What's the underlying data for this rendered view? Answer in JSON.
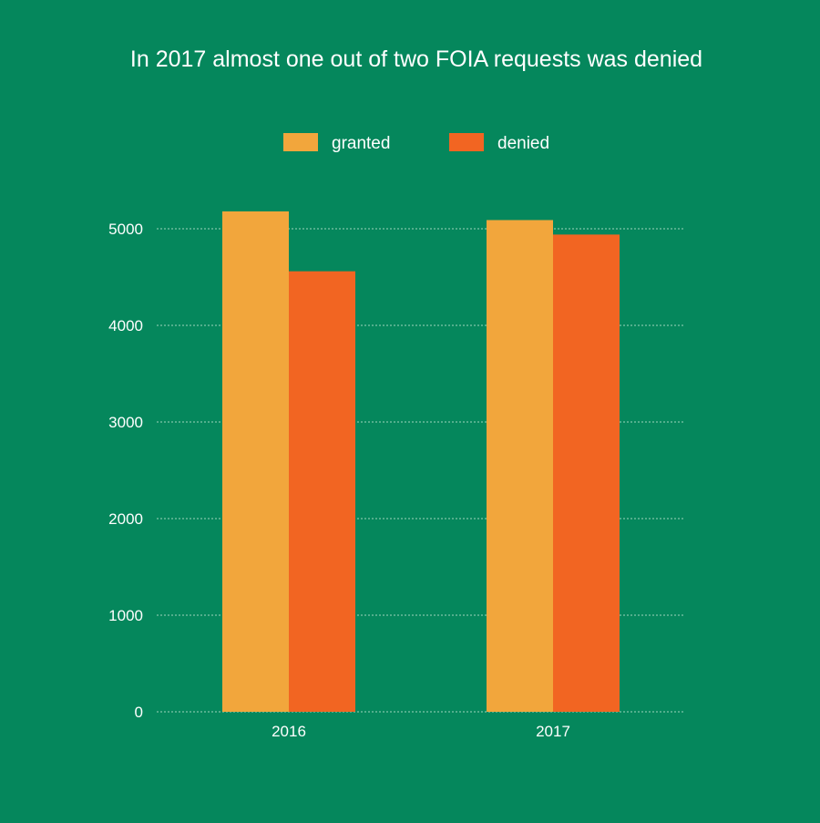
{
  "chart_data": {
    "type": "bar",
    "title": "In 2017 almost one out of two FOIA requests was denied",
    "xlabel": "",
    "ylabel": "",
    "categories": [
      "2016",
      "2017"
    ],
    "series": [
      {
        "name": "granted",
        "values": [
          5180,
          5090
        ],
        "color": "#f2a63c"
      },
      {
        "name": "denied",
        "values": [
          4560,
          4940
        ],
        "color": "#f26522"
      }
    ],
    "ylim": [
      0,
      5000
    ],
    "yticks": [
      "0",
      "1000",
      "2000",
      "3000",
      "4000",
      "5000"
    ],
    "grid": true,
    "legend_position": "top"
  },
  "colors": {
    "background": "#05875c",
    "text": "#ffffff"
  }
}
